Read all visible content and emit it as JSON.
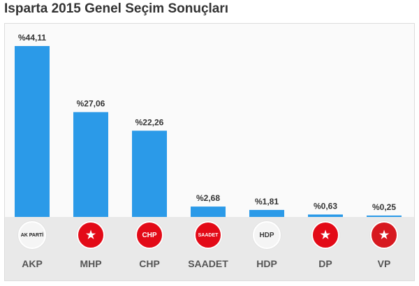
{
  "title": "Isparta 2015 Genel Seçim Sonuçları",
  "chart_data": {
    "type": "bar",
    "categories": [
      "AKP",
      "MHP",
      "CHP",
      "SAADET",
      "HDP",
      "DP",
      "VP"
    ],
    "values": [
      44.11,
      27.06,
      22.26,
      2.68,
      1.81,
      0.63,
      0.25
    ],
    "value_labels": [
      "%44,11",
      "%27,06",
      "%22,26",
      "%2,68",
      "%1,81",
      "%0,63",
      "%0,25"
    ],
    "ylim": [
      0,
      44.11
    ],
    "bar_color": "#2b9ae8",
    "grid": false,
    "legend": "none"
  },
  "parties": [
    {
      "name": "AKP",
      "logo_text": "AK PARTİ",
      "logo_icon": "akp-logo-icon",
      "logo_color": "#f5f5f5",
      "logo_text_color": "#1a1a1a"
    },
    {
      "name": "MHP",
      "logo_text": "",
      "logo_icon": "mhp-logo-icon",
      "logo_color": "#e30a17",
      "logo_text_color": "#ffffff"
    },
    {
      "name": "CHP",
      "logo_text": "CHP",
      "logo_icon": "chp-logo-icon",
      "logo_color": "#e30a17",
      "logo_text_color": "#ffffff"
    },
    {
      "name": "SAADET",
      "logo_text": "SAADET",
      "logo_icon": "saadet-logo-icon",
      "logo_color": "#e30a17",
      "logo_text_color": "#ffffff"
    },
    {
      "name": "HDP",
      "logo_text": "HDP",
      "logo_icon": "hdp-logo-icon",
      "logo_color": "#f5f5f5",
      "logo_text_color": "#3a3a3a"
    },
    {
      "name": "DP",
      "logo_text": "",
      "logo_icon": "dp-logo-icon",
      "logo_color": "#e30a17",
      "logo_text_color": "#ffffff"
    },
    {
      "name": "VP",
      "logo_text": "",
      "logo_icon": "vp-logo-icon",
      "logo_color": "#d71920",
      "logo_text_color": "#ffffff"
    }
  ]
}
